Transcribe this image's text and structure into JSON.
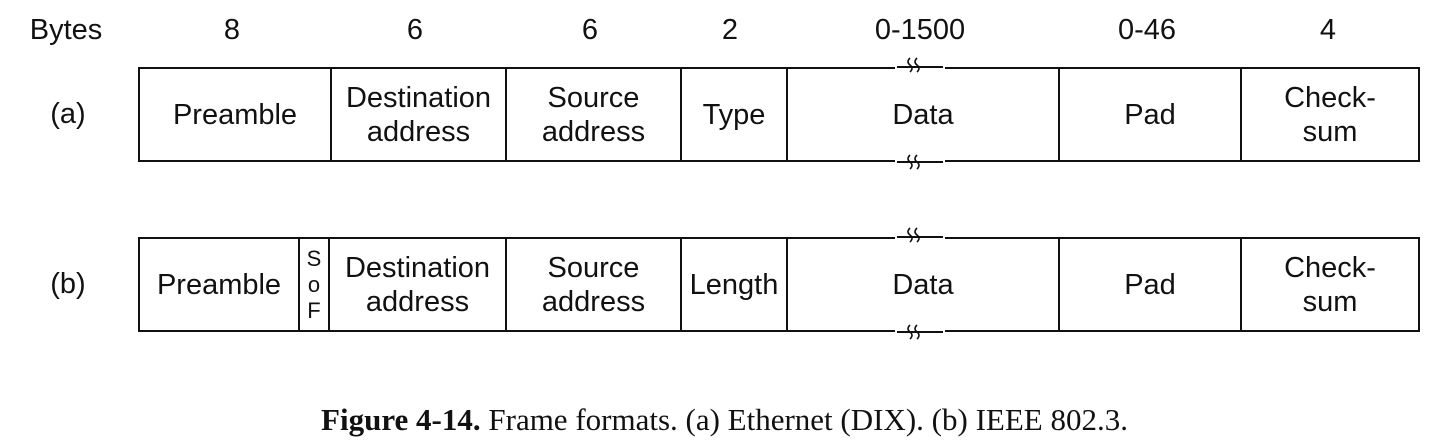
{
  "header": {
    "label": "Bytes",
    "sizes": [
      "8",
      "6",
      "6",
      "2",
      "0-1500",
      "0-46",
      "4"
    ]
  },
  "frames": [
    {
      "label": "(a)",
      "fields": [
        {
          "line1": "Preamble"
        },
        {
          "line1": "Destination",
          "line2": "address"
        },
        {
          "line1": "Source",
          "line2": "address"
        },
        {
          "line1": "Type"
        },
        {
          "line1": "Data"
        },
        {
          "line1": "Pad"
        },
        {
          "line1": "Check-",
          "line2": "sum"
        }
      ]
    },
    {
      "label": "(b)",
      "sof": [
        "S",
        "o",
        "F"
      ],
      "fields": [
        {
          "line1": "Preamble"
        },
        {
          "line1": "Destination",
          "line2": "address"
        },
        {
          "line1": "Source",
          "line2": "address"
        },
        {
          "line1": "Length"
        },
        {
          "line1": "Data"
        },
        {
          "line1": "Pad"
        },
        {
          "line1": "Check-",
          "line2": "sum"
        }
      ]
    }
  ],
  "caption": {
    "number": "Figure 4-14.",
    "text": "Frame formats. (a) Ethernet (DIX). (b) IEEE 802.3."
  }
}
